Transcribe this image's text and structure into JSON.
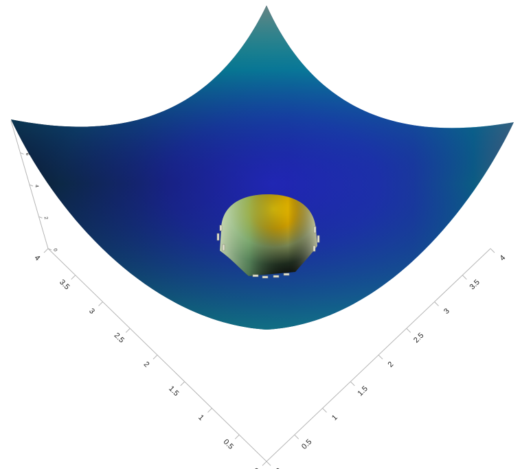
{
  "chart_data": {
    "type": "surface",
    "title": "",
    "xlabel": "",
    "ylabel": "",
    "zlabel": "",
    "x_ticks": [
      "0",
      "0.5",
      "1",
      "1.5",
      "2",
      "2.5",
      "3",
      "3.5",
      "4"
    ],
    "y_ticks": [
      "0",
      "0.5",
      "1",
      "1.5",
      "2",
      "2.5",
      "3",
      "3.5",
      "4"
    ],
    "z_ticks": [
      "0",
      "2",
      "4",
      "6"
    ],
    "xlim": [
      0,
      4
    ],
    "ylim": [
      0,
      4
    ],
    "zlim": [
      0,
      8
    ],
    "grid": false,
    "series": [
      {
        "type": "surface",
        "description_formula": "z = (x-2)^2 + (y-2)^2",
        "x_range": [
          0,
          4
        ],
        "y_range": [
          0,
          4
        ],
        "z_range": [
          0,
          8
        ],
        "colormap": [
          "#0a0a0a",
          "#102c3a",
          "#1f2fa8",
          "#2a6fe8",
          "#00e6f0",
          "#ffffff"
        ]
      },
      {
        "type": "surface",
        "description_formula": "dome centered near (2,2)",
        "center": [
          2,
          2
        ],
        "radius": 0.55,
        "peak": 2.2,
        "colors": [
          "#f2c200",
          "#7fb87f",
          "#f4f4d8"
        ]
      }
    ]
  }
}
